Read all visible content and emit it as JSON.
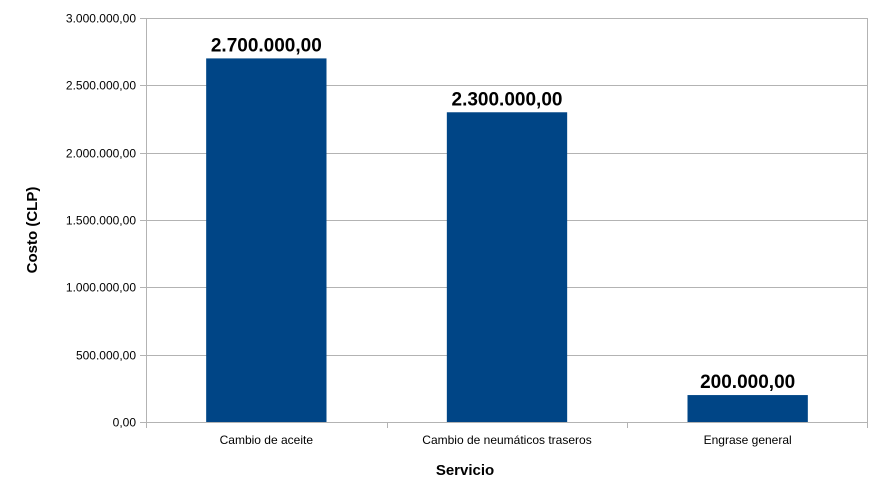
{
  "chart_data": {
    "type": "bar",
    "categories": [
      "Cambio de aceite",
      "Cambio de neumáticos traseros",
      "Engrase general"
    ],
    "values": [
      2700000,
      2300000,
      200000
    ],
    "data_labels": [
      "2.700.000,00",
      "2.300.000,00",
      "200.000,00"
    ],
    "title": "",
    "xlabel": "Servicio",
    "ylabel": "Costo (CLP)",
    "ylim": [
      0,
      3000000
    ],
    "yticks": [
      0,
      500000,
      1000000,
      1500000,
      2000000,
      2500000,
      3000000
    ],
    "ytick_labels": [
      "0,00",
      "500.000,00",
      "1.000.000,00",
      "1.500.000,00",
      "2.000.000,00",
      "2.500.000,00",
      "3.000.000,00"
    ],
    "grid": true,
    "legend": "none",
    "colors": {
      "bar": "#004586",
      "grid": "#b3b3b3"
    }
  }
}
